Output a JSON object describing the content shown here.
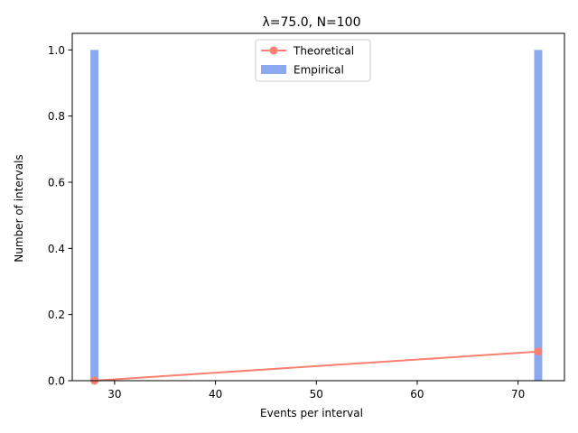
{
  "chart_data": {
    "type": "bar",
    "title": "λ=75.0, N=100",
    "xlabel": "Events per interval",
    "ylabel": "Number of intervals",
    "xlim": [
      25.8,
      74.6
    ],
    "ylim": [
      0,
      1.05
    ],
    "xticks": [
      30,
      40,
      50,
      60,
      70
    ],
    "yticks": [
      0.0,
      0.2,
      0.4,
      0.6,
      0.8,
      1.0
    ],
    "xtick_labels": [
      "30",
      "40",
      "50",
      "60",
      "70"
    ],
    "ytick_labels": [
      "0.0",
      "0.2",
      "0.4",
      "0.6",
      "0.8",
      "1.0"
    ],
    "grid": false,
    "legend_position": "top-center",
    "series": [
      {
        "name": "Theoretical",
        "kind": "line",
        "color": "#fa8072",
        "x": [
          28,
          72
        ],
        "y": [
          0.0,
          0.088
        ]
      },
      {
        "name": "Empirical",
        "kind": "bar",
        "color": "#8ca8ee",
        "x": [
          28,
          72
        ],
        "y": [
          1,
          1
        ]
      }
    ]
  }
}
